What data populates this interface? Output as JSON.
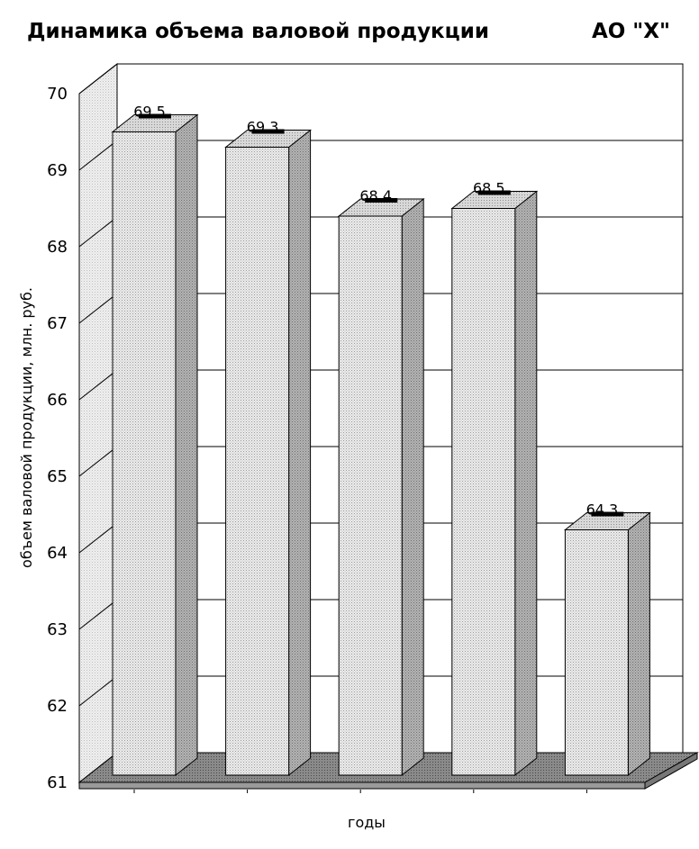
{
  "chart_data": {
    "type": "bar",
    "title": "Динамика объема валовой продукции",
    "subtitle": "АО \"Х\"",
    "xlabel": "годы",
    "ylabel": "объем валовой продукции, млн. руб.",
    "categories": [
      "",
      "",
      "",
      "",
      ""
    ],
    "values": [
      69.5,
      69.3,
      68.4,
      68.5,
      64.3
    ],
    "value_labels": [
      "69.5",
      "69.3",
      "68.4",
      "68.5",
      "64.3"
    ],
    "yticks": [
      "61",
      "62",
      "63",
      "64",
      "65",
      "66",
      "67",
      "68",
      "69",
      "70"
    ],
    "ylim": [
      61,
      70
    ],
    "grid": true,
    "legend": "none",
    "colors": {
      "bar_front": "#e4e4e4",
      "bar_side": "#a8a8a8",
      "bar_top": "#cfcfcf",
      "floor": "#7a7a7a",
      "wall": "#e6e6e6"
    }
  }
}
